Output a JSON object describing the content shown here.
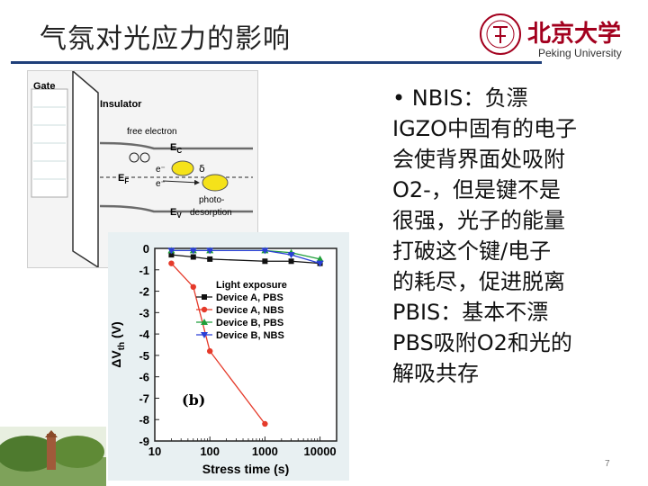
{
  "slide": {
    "title": "气氛对光应力的影响",
    "logo_text": "北京大学",
    "logo_subtitle": "Peking University",
    "page_number": "7",
    "bullet_text": "• NBIS：负漂 IGZO中固有的电子会使背界面处吸附O2-，但是键不是很强，光子的能量打破这个键/电子的耗尽，促进脱离 PBIS：基本不漂 PBS吸附O2和光的解吸共存",
    "lines": [
      "• NBIS：负漂",
      "IGZO中固有的电子",
      "会使背界面处吸附",
      "O2-，但是键不是",
      "很强，光子的能量",
      "打破这个键/电子",
      "的耗尽，促进脱离",
      "PBIS：基本不漂",
      "PBS吸附O2和光的",
      "解吸共存"
    ]
  },
  "diagram": {
    "gate_label": "Gate",
    "insulator_label": "Insulator",
    "free_electron_label": "free electron",
    "ec_label": "E",
    "ec_sub": "C",
    "ef_label": "E",
    "ef_sub": "F",
    "ev_label": "E",
    "ev_sub": "V",
    "delta_label": "δ",
    "electron_label": "e⁻",
    "photo_label_1": "photo-",
    "photo_label_2": "desorption",
    "colors": {
      "band": "#6b6b6b",
      "bubble": "#f5e21a",
      "gate_fill": "#ffffff",
      "arrow": "#222222"
    }
  },
  "chart_data": {
    "type": "line",
    "xscale": "log",
    "x": [
      20,
      50,
      100,
      1000,
      3000,
      10000
    ],
    "xlim": [
      10,
      20000
    ],
    "xticks": [
      "10",
      "100",
      "1000",
      "10000"
    ],
    "ylim": [
      -9,
      0
    ],
    "yticks": [
      "0",
      "-1",
      "-2",
      "-3",
      "-4",
      "-5",
      "-6",
      "-7",
      "-8",
      "-9"
    ],
    "xlabel": "Stress time (s)",
    "ylabel": "ΔV",
    "ylabel_sub": "th",
    "ylabel_unit": " (V)",
    "legend_title": "Light exposure",
    "legend_position": "center-right",
    "panel_label": "(b)",
    "series": [
      {
        "name": "Device A, PBS",
        "color": "#111111",
        "marker": "square",
        "x": [
          20,
          50,
          100,
          1000,
          3000,
          10000
        ],
        "values": [
          -0.3,
          -0.4,
          -0.5,
          -0.6,
          -0.6,
          -0.7
        ]
      },
      {
        "name": "Device A, NBS",
        "color": "#e53a2a",
        "marker": "circle",
        "x": [
          20,
          50,
          100,
          1000
        ],
        "values": [
          -0.7,
          -1.8,
          -4.8,
          -8.2
        ]
      },
      {
        "name": "Device B, PBS",
        "color": "#1f9e3a",
        "marker": "triangle-up",
        "x": [
          20,
          50,
          100,
          1000,
          3000,
          10000
        ],
        "values": [
          -0.1,
          -0.1,
          -0.1,
          -0.1,
          -0.2,
          -0.5
        ]
      },
      {
        "name": "Device B, NBS",
        "color": "#2a3fd6",
        "marker": "triangle-down",
        "x": [
          20,
          50,
          100,
          1000,
          3000,
          10000
        ],
        "values": [
          -0.1,
          -0.1,
          -0.1,
          -0.1,
          -0.3,
          -0.7
        ]
      }
    ]
  }
}
